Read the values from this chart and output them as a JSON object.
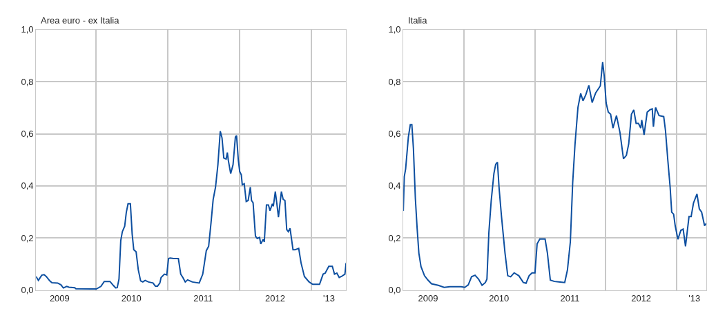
{
  "chart_data": [
    {
      "type": "line",
      "title": "Area euro - ex Italia",
      "xlim": [
        "2009-03-03",
        "2013-06-27"
      ],
      "ylim": [
        0,
        1
      ],
      "yticks": [
        {
          "value": 0,
          "label": "0,0"
        },
        {
          "value": 0.2,
          "label": "0,2"
        },
        {
          "value": 0.4,
          "label": "0,4"
        },
        {
          "value": 0.6,
          "label": "0,6"
        },
        {
          "value": 0.8,
          "label": "0,8"
        },
        {
          "value": 1,
          "label": "1,0"
        }
      ],
      "xticks": [
        {
          "value": "2009-07-01",
          "label": "2009"
        },
        {
          "value": "2010-01-01",
          "label": null
        },
        {
          "value": "2010-07-01",
          "label": "2010"
        },
        {
          "value": "2011-01-01",
          "label": null
        },
        {
          "value": "2011-07-01",
          "label": "2011"
        },
        {
          "value": "2012-01-01",
          "label": null
        },
        {
          "value": "2012-07-01",
          "label": "2012"
        },
        {
          "value": "2013-01-01",
          "label": null
        },
        {
          "value": "2013-04-01",
          "label": "'13"
        }
      ],
      "grid": true,
      "marker": "none",
      "line_style": "solid",
      "series": [
        {
          "color": "#0d4fa0",
          "x": [
            "2009-03-03",
            "2009-03-15",
            "2009-04-01",
            "2009-04-13",
            "2009-04-24",
            "2009-05-12",
            "2009-05-23",
            "2009-06-21",
            "2009-07-08",
            "2009-07-20",
            "2009-08-06",
            "2009-08-18",
            "2009-09-16",
            "2009-09-22",
            "2009-12-11",
            "2010-01-04",
            "2010-01-27",
            "2010-02-13",
            "2010-03-14",
            "2010-03-31",
            "2010-04-12",
            "2010-04-20",
            "2010-04-29",
            "2010-05-08",
            "2010-05-16",
            "2010-05-28",
            "2010-06-05",
            "2010-06-14",
            "2010-06-26",
            "2010-07-05",
            "2010-07-13",
            "2010-07-25",
            "2010-08-05",
            "2010-08-17",
            "2010-08-28",
            "2010-09-09",
            "2010-09-26",
            "2010-10-19",
            "2010-10-31",
            "2010-11-11",
            "2010-11-23",
            "2010-11-29",
            "2010-12-16",
            "2010-12-28",
            "2011-01-06",
            "2011-01-14",
            "2011-02-01",
            "2011-02-25",
            "2011-03-09",
            "2011-03-20",
            "2011-04-01",
            "2011-04-13",
            "2011-05-07",
            "2011-06-11",
            "2011-06-29",
            "2011-07-17",
            "2011-07-29",
            "2011-08-10",
            "2011-08-21",
            "2011-09-02",
            "2011-09-14",
            "2011-09-26",
            "2011-10-05",
            "2011-10-14",
            "2011-10-26",
            "2011-11-01",
            "2011-11-06",
            "2011-11-18",
            "2011-11-30",
            "2011-12-12",
            "2011-12-18",
            "2011-12-27",
            "2012-01-03",
            "2012-01-11",
            "2012-01-16",
            "2012-01-26",
            "2012-02-05",
            "2012-02-15",
            "2012-02-26",
            "2012-03-03",
            "2012-03-11",
            "2012-03-23",
            "2012-04-01",
            "2012-04-13",
            "2012-04-19",
            "2012-05-01",
            "2012-05-07",
            "2012-05-18",
            "2012-05-28",
            "2012-06-05",
            "2012-06-17",
            "2012-06-22",
            "2012-07-02",
            "2012-07-10",
            "2012-07-18",
            "2012-07-25",
            "2012-08-02",
            "2012-08-11",
            "2012-08-20",
            "2012-08-29",
            "2012-09-06",
            "2012-09-15",
            "2012-09-30",
            "2012-10-11",
            "2012-10-29",
            "2012-11-10",
            "2012-11-27",
            "2012-12-21",
            "2013-01-08",
            "2013-02-12",
            "2013-03-02",
            "2013-03-13",
            "2013-03-31",
            "2013-04-18",
            "2013-04-29",
            "2013-05-11",
            "2013-05-23",
            "2013-06-03",
            "2013-06-21",
            "2013-06-27"
          ],
          "values": [
            0.052,
            0.037,
            0.057,
            0.059,
            0.052,
            0.035,
            0.028,
            0.027,
            0.02,
            0.008,
            0.014,
            0.011,
            0.009,
            0.005,
            0.004,
            0.004,
            0.014,
            0.033,
            0.033,
            0.018,
            0.008,
            0.009,
            0.042,
            0.19,
            0.224,
            0.245,
            0.297,
            0.331,
            0.331,
            0.215,
            0.155,
            0.147,
            0.078,
            0.035,
            0.031,
            0.037,
            0.031,
            0.027,
            0.015,
            0.015,
            0.027,
            0.048,
            0.061,
            0.058,
            0.121,
            0.123,
            0.121,
            0.121,
            0.061,
            0.048,
            0.031,
            0.039,
            0.031,
            0.027,
            0.061,
            0.151,
            0.168,
            0.258,
            0.348,
            0.395,
            0.481,
            0.61,
            0.584,
            0.507,
            0.503,
            0.528,
            0.498,
            0.447,
            0.481,
            0.588,
            0.593,
            0.498,
            0.455,
            0.443,
            0.404,
            0.408,
            0.34,
            0.344,
            0.395,
            0.344,
            0.335,
            0.207,
            0.198,
            0.202,
            0.177,
            0.194,
            0.185,
            0.327,
            0.327,
            0.305,
            0.331,
            0.322,
            0.378,
            0.331,
            0.28,
            0.327,
            0.378,
            0.348,
            0.344,
            0.232,
            0.224,
            0.237,
            0.155,
            0.155,
            0.16,
            0.104,
            0.052,
            0.031,
            0.022,
            0.022,
            0.061,
            0.065,
            0.091,
            0.091,
            0.061,
            0.065,
            0.048,
            0.052,
            0.061,
            0.104
          ]
        }
      ]
    },
    {
      "type": "line",
      "title": "Italia",
      "xlim": [
        "2009-02-24",
        "2013-06-01"
      ],
      "ylim": [
        0,
        1
      ],
      "yticks": [
        {
          "value": 0,
          "label": "0,0"
        },
        {
          "value": 0.2,
          "label": "0,2"
        },
        {
          "value": 0.4,
          "label": "0,4"
        },
        {
          "value": 0.6,
          "label": "0,6"
        },
        {
          "value": 0.8,
          "label": "0,8"
        },
        {
          "value": 1,
          "label": "1,0"
        }
      ],
      "xticks": [
        {
          "value": "2009-07-01",
          "label": "2009"
        },
        {
          "value": "2010-01-01",
          "label": null
        },
        {
          "value": "2010-07-01",
          "label": "2010"
        },
        {
          "value": "2011-01-01",
          "label": null
        },
        {
          "value": "2011-07-01",
          "label": "2011"
        },
        {
          "value": "2012-01-01",
          "label": null
        },
        {
          "value": "2012-07-01",
          "label": "2012"
        },
        {
          "value": "2013-01-01",
          "label": null
        },
        {
          "value": "2013-04-01",
          "label": "'13"
        }
      ],
      "grid": true,
      "marker": "none",
      "line_style": "solid",
      "series": [
        {
          "color": "#0d4fa0",
          "x": [
            "2009-02-24",
            "2009-03-01",
            "2009-03-08",
            "2009-03-17",
            "2009-03-22",
            "2009-04-01",
            "2009-04-09",
            "2009-04-17",
            "2009-04-27",
            "2009-05-06",
            "2009-05-15",
            "2009-05-26",
            "2009-06-13",
            "2009-07-01",
            "2009-07-19",
            "2009-08-23",
            "2009-09-22",
            "2009-10-21",
            "2009-12-19",
            "2010-01-06",
            "2010-01-24",
            "2010-02-10",
            "2010-02-28",
            "2010-03-18",
            "2010-04-05",
            "2010-04-22",
            "2010-04-30",
            "2010-05-10",
            "2010-05-22",
            "2010-06-05",
            "2010-06-14",
            "2010-06-23",
            "2010-07-02",
            "2010-07-14",
            "2010-08-01",
            "2010-08-15",
            "2010-08-30",
            "2010-09-17",
            "2010-10-11",
            "2010-11-03",
            "2010-11-17",
            "2010-12-03",
            "2010-12-18",
            "2011-01-02",
            "2011-01-13",
            "2011-01-27",
            "2011-02-23",
            "2011-03-07",
            "2011-03-22",
            "2011-04-12",
            "2011-05-11",
            "2011-06-04",
            "2011-06-18",
            "2011-07-03",
            "2011-07-15",
            "2011-07-27",
            "2011-08-11",
            "2011-08-25",
            "2011-09-06",
            "2011-09-20",
            "2011-10-06",
            "2011-10-23",
            "2011-11-10",
            "2011-12-04",
            "2011-12-16",
            "2011-12-24",
            "2012-01-03",
            "2012-01-14",
            "2012-01-26",
            "2012-02-07",
            "2012-02-25",
            "2012-03-14",
            "2012-04-01",
            "2012-04-16",
            "2012-04-28",
            "2012-05-12",
            "2012-05-24",
            "2012-06-05",
            "2012-06-17",
            "2012-06-29",
            "2012-07-04",
            "2012-07-16",
            "2012-08-01",
            "2012-08-15",
            "2012-08-27",
            "2012-09-02",
            "2012-09-13",
            "2012-10-01",
            "2012-10-25",
            "2012-11-03",
            "2012-11-15",
            "2012-11-27",
            "2012-12-05",
            "2012-12-15",
            "2012-12-23",
            "2013-01-06",
            "2013-01-21",
            "2013-02-02",
            "2013-02-14",
            "2013-03-04",
            "2013-03-15",
            "2013-03-27",
            "2013-04-14",
            "2013-04-26",
            "2013-05-08",
            "2013-05-23",
            "2013-06-01"
          ],
          "values": [
            0.304,
            0.435,
            0.465,
            0.544,
            0.587,
            0.635,
            0.635,
            0.544,
            0.352,
            0.238,
            0.142,
            0.09,
            0.055,
            0.038,
            0.024,
            0.018,
            0.01,
            0.013,
            0.013,
            0.01,
            0.02,
            0.051,
            0.057,
            0.042,
            0.018,
            0.029,
            0.042,
            0.221,
            0.343,
            0.448,
            0.483,
            0.491,
            0.387,
            0.282,
            0.142,
            0.055,
            0.051,
            0.066,
            0.055,
            0.029,
            0.026,
            0.055,
            0.066,
            0.066,
            0.177,
            0.196,
            0.196,
            0.142,
            0.038,
            0.033,
            0.031,
            0.029,
            0.077,
            0.186,
            0.413,
            0.561,
            0.701,
            0.755,
            0.727,
            0.749,
            0.786,
            0.72,
            0.757,
            0.784,
            0.875,
            0.823,
            0.718,
            0.683,
            0.675,
            0.622,
            0.67,
            0.605,
            0.504,
            0.517,
            0.561,
            0.675,
            0.692,
            0.64,
            0.64,
            0.622,
            0.653,
            0.596,
            0.683,
            0.692,
            0.696,
            0.627,
            0.701,
            0.67,
            0.666,
            0.613,
            0.5,
            0.395,
            0.299,
            0.291,
            0.247,
            0.195,
            0.229,
            0.234,
            0.168,
            0.282,
            0.282,
            0.334,
            0.369,
            0.312,
            0.299,
            0.247,
            0.256
          ]
        }
      ]
    }
  ]
}
